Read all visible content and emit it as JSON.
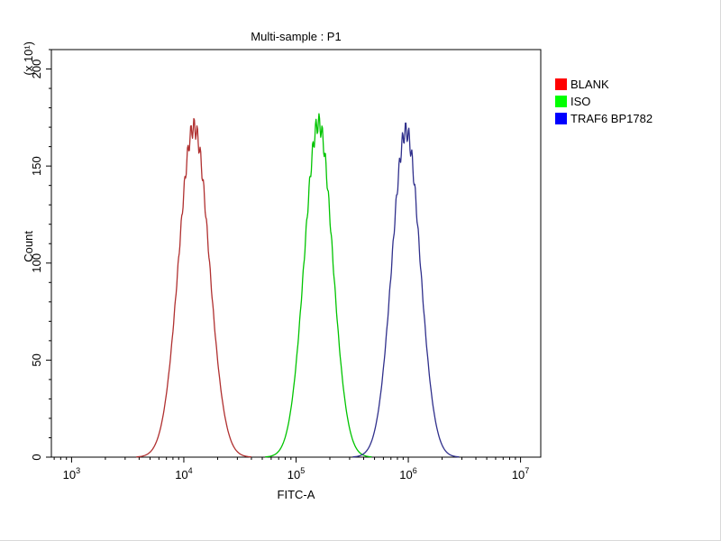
{
  "chart_data": {
    "type": "line",
    "subtype": "flow-cytometry-histogram",
    "title": "Multi-sample : P1",
    "xlabel": "FITC-A",
    "ylabel": "Count",
    "y_unit_label": "(x 10¹)",
    "x_scale": "log10",
    "xlim_log10": [
      2.82,
      7.18
    ],
    "x_major_tick_exponents": [
      3,
      4,
      5,
      6,
      7
    ],
    "ylim": [
      0,
      210
    ],
    "y_major_ticks": [
      0,
      50,
      100,
      150,
      200
    ],
    "y_minor_tick_step": 10,
    "grid": false,
    "axis_color": "#000000",
    "legend": {
      "position": "right",
      "items": [
        {
          "label": "BLANK",
          "color": "#ff0000"
        },
        {
          "label": "ISO",
          "color": "#00ff00"
        },
        {
          "label": "TRAF6 BP1782",
          "color": "#0000ff"
        }
      ]
    },
    "series": [
      {
        "name": "BLANK",
        "color": "#b03030",
        "peak_center": 12300,
        "peak_center_log10": 4.09,
        "sigma_log10": 0.135,
        "peak_height": 170
      },
      {
        "name": "ISO",
        "color": "#00c400",
        "peak_center": 158000,
        "peak_center_log10": 5.2,
        "sigma_log10": 0.125,
        "peak_height": 172
      },
      {
        "name": "TRAF6 BP1782",
        "color": "#30308c",
        "peak_center": 955000,
        "peak_center_log10": 5.98,
        "sigma_log10": 0.125,
        "peak_height": 168
      }
    ]
  }
}
